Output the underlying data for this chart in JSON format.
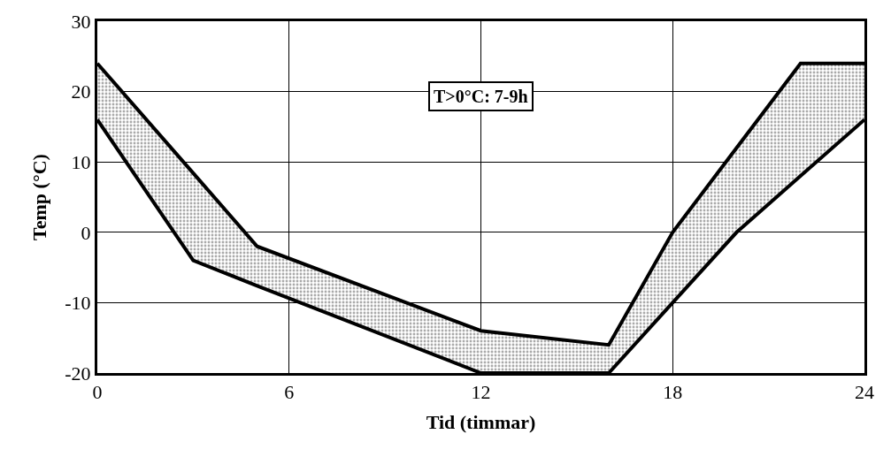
{
  "chart_data": {
    "type": "line",
    "xlabel": "Tid (timmar)",
    "ylabel": "Temp (°C)",
    "annotations": [
      "T>0°C: 7-9h"
    ],
    "series": [
      {
        "color": "#000000",
        "x": [
          0,
          3,
          5,
          12,
          16,
          18,
          20,
          22,
          24
        ],
        "values": [
          24,
          8.4,
          -2,
          -14,
          -16,
          0,
          12,
          24,
          24
        ],
        "lower": [
          16,
          -4,
          -7.6,
          -20,
          -20,
          -10,
          0,
          8,
          16
        ],
        "upper": [
          24,
          8.4,
          -2,
          -14,
          -16,
          0,
          12,
          24,
          24
        ]
      },
      {
        "color": "#000000",
        "x": [
          0,
          3,
          5,
          12,
          16,
          18,
          20,
          22,
          24
        ],
        "values": [
          16,
          -4,
          -7.6,
          -20,
          -20,
          -10,
          0,
          8,
          16
        ]
      }
    ],
    "xlim": [
      0,
      24
    ],
    "xticks": [
      0,
      6,
      12,
      18,
      24
    ],
    "ylim": [
      -20,
      30
    ],
    "yticks": [
      -20,
      -10,
      0,
      10,
      20,
      30
    ],
    "grid": true,
    "marker": "none",
    "line_style": "solid"
  }
}
